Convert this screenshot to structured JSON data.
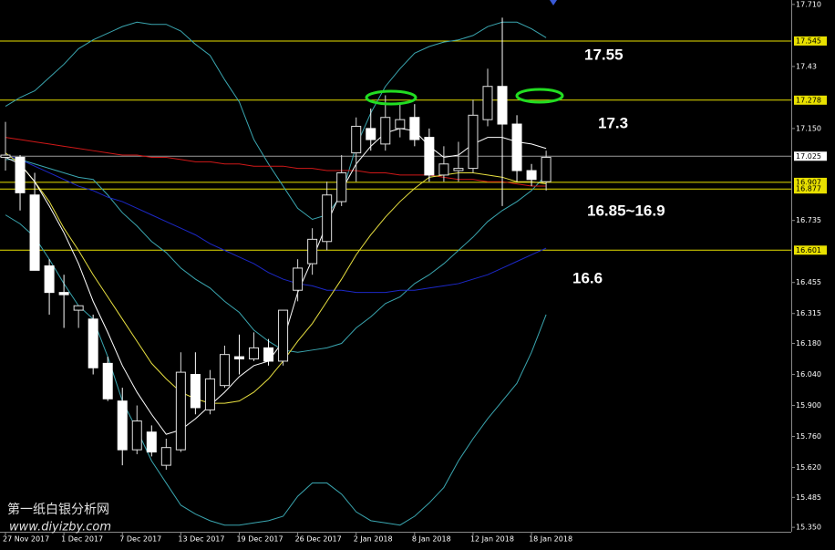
{
  "chart_data": {
    "type": "candlestick",
    "categories": [
      "27 Nov 2017",
      null,
      null,
      null,
      "1 Dec 2017",
      null,
      null,
      null,
      "7 Dec 2017",
      null,
      null,
      null,
      "13 Dec 2017",
      null,
      null,
      null,
      "19 Dec 2017",
      null,
      null,
      null,
      "26 Dec 2017",
      null,
      null,
      null,
      "2 Jan 2018",
      null,
      null,
      null,
      "8 Jan 2018",
      null,
      null,
      null,
      "12 Jan 2018",
      null,
      null,
      null,
      "18 Jan 2018",
      null
    ],
    "open": [
      17.02,
      17.02,
      16.85,
      16.53,
      16.41,
      16.33,
      16.29,
      16.09,
      15.92,
      15.7,
      15.78,
      15.63,
      15.7,
      16.04,
      15.88,
      15.99,
      16.12,
      16.11,
      16.16,
      16.1,
      16.42,
      16.54,
      16.64,
      16.82,
      17.04,
      17.15,
      17.08,
      17.15,
      17.2,
      17.11,
      16.94,
      16.96,
      16.97,
      17.19,
      17.34,
      17.17,
      16.96,
      16.91
    ],
    "high": [
      17.18,
      17.03,
      16.95,
      16.56,
      16.49,
      16.35,
      16.31,
      16.12,
      15.98,
      15.9,
      15.81,
      15.75,
      16.14,
      16.14,
      16.06,
      16.17,
      16.22,
      16.23,
      16.2,
      16.33,
      16.56,
      16.7,
      16.91,
      17.03,
      17.2,
      17.24,
      17.3,
      17.26,
      17.26,
      17.15,
      17.07,
      17.09,
      17.28,
      17.42,
      17.65,
      17.21,
      16.99,
      17.05
    ],
    "low": [
      16.96,
      16.78,
      16.51,
      16.31,
      16.25,
      16.25,
      16.04,
      15.92,
      15.63,
      15.68,
      15.67,
      15.61,
      15.69,
      15.86,
      15.86,
      15.98,
      16.04,
      16.1,
      16.08,
      16.08,
      16.37,
      16.49,
      16.6,
      16.8,
      16.91,
      17.05,
      17.05,
      17.11,
      17.07,
      16.91,
      16.91,
      16.91,
      16.95,
      17.16,
      16.8,
      16.91,
      16.89,
      16.87
    ],
    "close": [
      17.03,
      16.86,
      16.51,
      16.41,
      16.4,
      16.35,
      16.07,
      15.93,
      15.7,
      15.83,
      15.69,
      15.71,
      16.05,
      15.89,
      16.02,
      16.13,
      16.11,
      16.16,
      16.1,
      16.33,
      16.52,
      16.65,
      16.85,
      16.95,
      17.16,
      17.1,
      17.2,
      17.19,
      17.1,
      16.94,
      16.99,
      16.97,
      17.21,
      17.34,
      17.17,
      16.96,
      16.92,
      17.02
    ],
    "up_color": "#000000",
    "down_color": "#ffffff",
    "series": [
      {
        "color": "#3aa6b0",
        "values": [
          17.25,
          17.29,
          17.32,
          17.38,
          17.44,
          17.51,
          17.55,
          17.58,
          17.61,
          17.63,
          17.62,
          17.62,
          17.59,
          17.53,
          17.48,
          17.37,
          17.27,
          17.1,
          16.99,
          16.89,
          16.79,
          16.74,
          16.76,
          16.85,
          17.07,
          17.22,
          17.34,
          17.42,
          17.49,
          17.52,
          17.54,
          17.55,
          17.57,
          17.61,
          17.63,
          17.63,
          17.6,
          17.56
        ]
      },
      {
        "color": "#3aa6b0",
        "values": [
          17.01,
          17.01,
          16.99,
          16.97,
          16.95,
          16.93,
          16.92,
          16.85,
          16.77,
          16.71,
          16.64,
          16.59,
          16.52,
          16.47,
          16.43,
          16.37,
          16.32,
          16.24,
          16.19,
          16.15,
          16.14,
          16.15,
          16.16,
          16.18,
          16.25,
          16.3,
          16.36,
          16.39,
          16.45,
          16.49,
          16.54,
          16.6,
          16.66,
          16.73,
          16.78,
          16.82,
          16.87,
          16.94
        ]
      },
      {
        "color": "#3aa6b0",
        "values": [
          16.76,
          16.72,
          16.66,
          16.56,
          16.45,
          16.35,
          16.29,
          16.12,
          15.92,
          15.79,
          15.65,
          15.55,
          15.45,
          15.41,
          15.38,
          15.36,
          15.36,
          15.37,
          15.38,
          15.4,
          15.49,
          15.55,
          15.55,
          15.5,
          15.42,
          15.38,
          15.37,
          15.36,
          15.4,
          15.46,
          15.53,
          15.65,
          15.75,
          15.84,
          15.92,
          16.0,
          16.14,
          16.31
        ]
      },
      {
        "color": "#d01818",
        "values": [
          17.11,
          17.1,
          17.09,
          17.08,
          17.07,
          17.06,
          17.05,
          17.04,
          17.03,
          17.03,
          17.02,
          17.02,
          17.01,
          17.0,
          17.0,
          16.99,
          16.99,
          16.98,
          16.98,
          16.98,
          16.97,
          16.97,
          16.96,
          16.96,
          16.96,
          16.95,
          16.95,
          16.94,
          16.94,
          16.94,
          16.93,
          16.92,
          16.92,
          16.91,
          16.91,
          16.9,
          16.89,
          16.89
        ]
      },
      {
        "color": "#1c28c8",
        "values": [
          17.03,
          17.01,
          16.98,
          16.95,
          16.92,
          16.89,
          16.87,
          16.84,
          16.82,
          16.79,
          16.76,
          16.73,
          16.7,
          16.67,
          16.63,
          16.6,
          16.57,
          16.54,
          16.5,
          16.47,
          16.45,
          16.44,
          16.42,
          16.42,
          16.41,
          16.41,
          16.41,
          16.42,
          16.42,
          16.43,
          16.44,
          16.45,
          16.47,
          16.49,
          16.52,
          16.55,
          16.58,
          16.61
        ]
      },
      {
        "color": "#e8e040",
        "values": [
          17.04,
          16.99,
          16.91,
          16.82,
          16.7,
          16.6,
          16.49,
          16.39,
          16.29,
          16.19,
          16.09,
          16.02,
          15.96,
          15.93,
          15.91,
          15.91,
          15.92,
          15.96,
          16.02,
          16.1,
          16.19,
          16.27,
          16.37,
          16.47,
          16.58,
          16.67,
          16.75,
          16.82,
          16.88,
          16.93,
          16.94,
          16.95,
          16.95,
          16.94,
          16.93,
          16.91,
          16.91,
          16.9
        ]
      },
      {
        "color": "#ffffff",
        "values": [
          17.02,
          16.99,
          16.91,
          16.8,
          16.68,
          16.54,
          16.37,
          16.23,
          16.08,
          15.96,
          15.86,
          15.77,
          15.79,
          15.84,
          15.9,
          15.96,
          16.03,
          16.08,
          16.1,
          16.19,
          16.41,
          16.56,
          16.72,
          16.87,
          16.99,
          17.07,
          17.13,
          17.15,
          17.14,
          17.07,
          17.02,
          17.03,
          17.08,
          17.11,
          17.11,
          17.09,
          17.08,
          17.06
        ]
      }
    ],
    "ylim": [
      15.33,
      17.73
    ],
    "yticks": [
      {
        "value": 17.71,
        "label": "17.710"
      },
      17.43,
      {
        "value": 17.15,
        "label": "17.150"
      },
      16.735,
      16.455,
      16.315,
      {
        "value": 16.18,
        "label": "16.180"
      },
      {
        "value": 16.04,
        "label": "16.040"
      },
      {
        "value": 15.9,
        "label": "15.900"
      },
      {
        "value": 15.76,
        "label": "15.760"
      },
      {
        "value": 15.62,
        "label": "15.620"
      },
      15.485,
      {
        "value": 15.35,
        "label": "15.350"
      }
    ],
    "levels": [
      17.545,
      17.278,
      16.907,
      16.877,
      16.601
    ],
    "level_color": "#e8e000",
    "current_price": 17.025,
    "annotations": [
      "17.55",
      "17.3",
      "16.85~16.9",
      "16.6"
    ],
    "watermark": [
      "第一纸白银分析网",
      "www.diyizby.com"
    ]
  }
}
